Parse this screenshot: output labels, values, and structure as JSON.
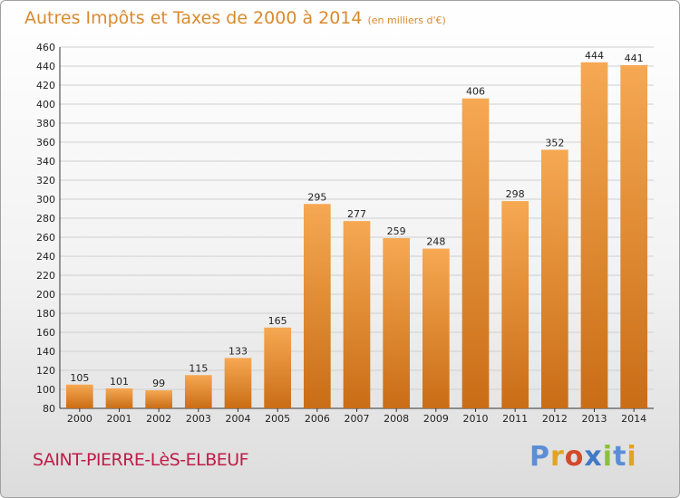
{
  "title": "Autres Impôts et Taxes de 2000 à 2014",
  "unit_note": "(en milliers d'€)",
  "location": "SAINT-PIERRE-LèS-ELBEUF",
  "brand": "Proxiti",
  "colors": {
    "bar_light": "#f6a852",
    "bar_dark": "#c96d16",
    "title": "#d98a2e",
    "location": "#c01c48"
  },
  "chart_data": {
    "type": "bar",
    "categories": [
      "2000",
      "2001",
      "2002",
      "2003",
      "2004",
      "2005",
      "2006",
      "2007",
      "2008",
      "2009",
      "2010",
      "2011",
      "2012",
      "2013",
      "2014"
    ],
    "values": [
      105,
      101,
      99,
      115,
      133,
      165,
      295,
      277,
      259,
      248,
      406,
      298,
      352,
      444,
      441
    ],
    "title": "Autres Impôts et Taxes de 2000 à 2014",
    "ylim": [
      80,
      460
    ],
    "yticks": [
      80,
      100,
      120,
      140,
      160,
      180,
      200,
      220,
      240,
      260,
      280,
      300,
      320,
      340,
      360,
      380,
      400,
      420,
      440,
      460
    ],
    "grid": true,
    "legend": "none"
  }
}
